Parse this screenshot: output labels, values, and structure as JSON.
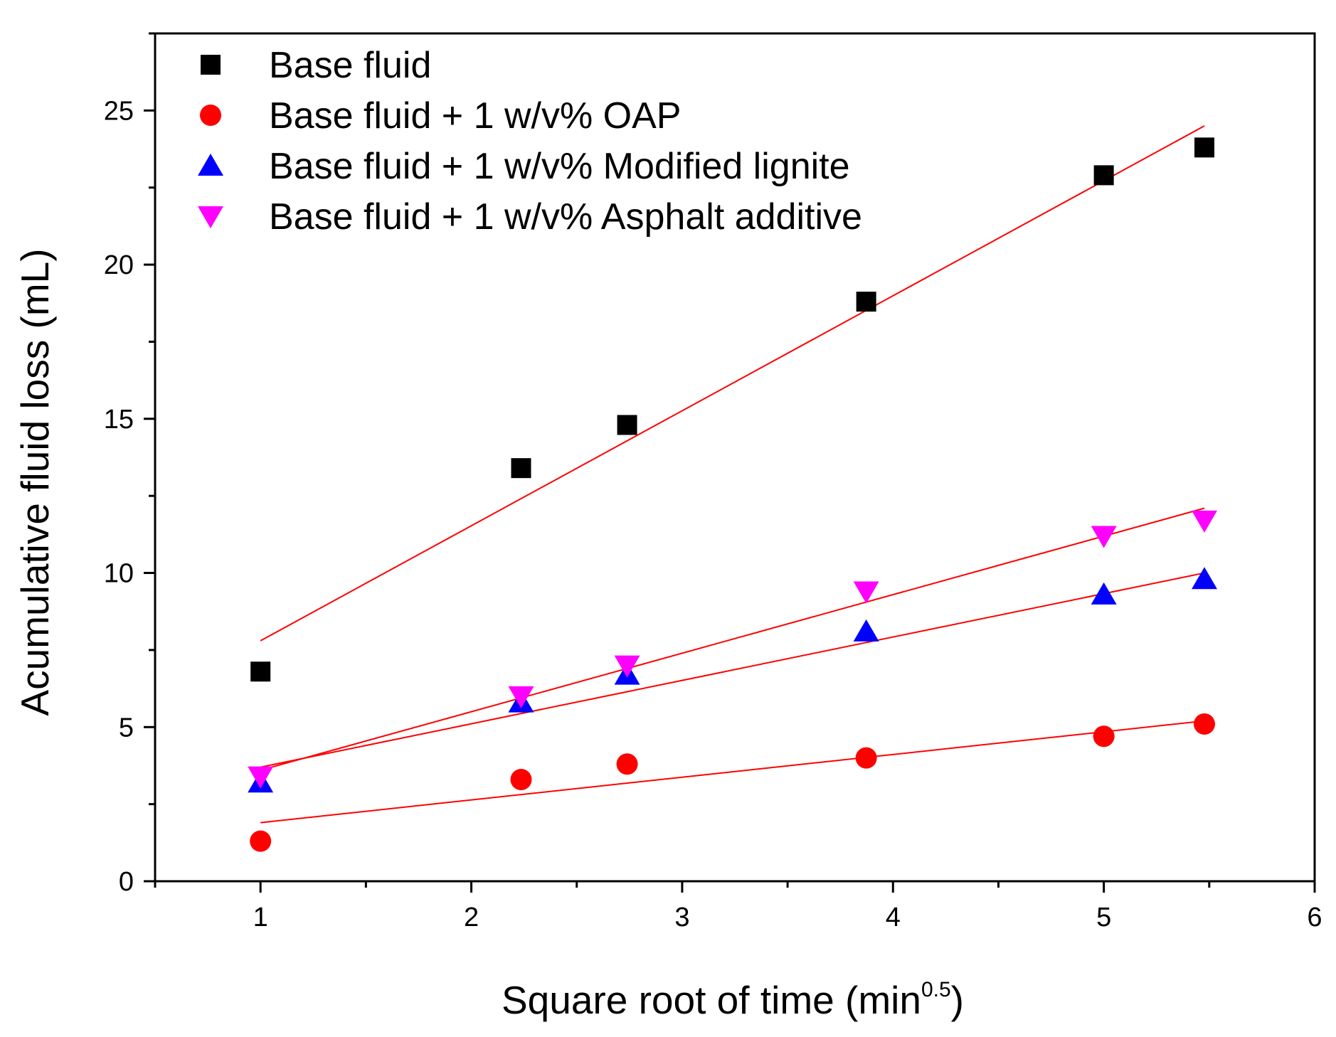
{
  "chart_data": {
    "type": "scatter",
    "title": "",
    "xlabel": "Square root of time (min",
    "xlabel_superscript": "0.5",
    "xlabel_suffix": ")",
    "ylabel": "Acumulative fluid loss (mL)",
    "xlim": [
      0.5,
      6
    ],
    "ylim": [
      0,
      27.5
    ],
    "x_ticks": [
      "1",
      "2",
      "3",
      "4",
      "5",
      "6"
    ],
    "y_ticks": [
      "0",
      "5",
      "10",
      "15",
      "20",
      "25"
    ],
    "grid": false,
    "legend_position": "top-left",
    "x": [
      1,
      2.236,
      2.739,
      3.873,
      5,
      5.477
    ],
    "series": [
      {
        "name": "Base fluid",
        "marker": "square",
        "color": "#000000",
        "values": [
          6.8,
          13.4,
          14.8,
          18.8,
          22.9,
          23.8
        ],
        "fit_line": {
          "color": "#ff0000",
          "x": [
            1,
            5.477
          ],
          "y": [
            7.8,
            24.5
          ]
        }
      },
      {
        "name": "Base fluid + 1 w/v% OAP",
        "marker": "circle",
        "color": "#ff0000",
        "values": [
          1.3,
          3.3,
          3.8,
          4.0,
          4.7,
          5.1
        ],
        "fit_line": {
          "color": "#ff0000",
          "x": [
            1,
            5.477
          ],
          "y": [
            1.9,
            5.2
          ]
        }
      },
      {
        "name": "Base fluid + 1 w/v% Modified lignite",
        "marker": "triangle-up",
        "color": "#0000ff",
        "values": [
          3.2,
          5.8,
          6.7,
          8.1,
          9.3,
          9.8
        ],
        "fit_line": {
          "color": "#ff0000",
          "x": [
            1,
            5.477
          ],
          "y": [
            3.7,
            10.0
          ]
        }
      },
      {
        "name": "Base fluid + 1 w/v% Asphalt additive",
        "marker": "triangle-down",
        "color": "#ff00ff",
        "values": [
          3.4,
          6.0,
          7.0,
          9.4,
          11.2,
          11.7
        ],
        "fit_line": {
          "color": "#ff0000",
          "x": [
            1,
            5.477
          ],
          "y": [
            3.6,
            12.1
          ]
        }
      }
    ]
  }
}
